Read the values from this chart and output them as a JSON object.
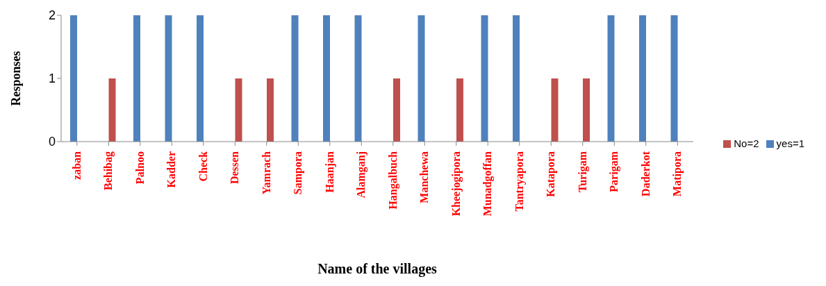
{
  "chart_data": {
    "type": "bar",
    "xlabel": "Name of the villages",
    "ylabel": "Responses",
    "categories": [
      "zaban",
      "Behibag",
      "Palnoo",
      "Kadder",
      "Check",
      "Dessen",
      "Yamrach",
      "Sampora",
      "Haanjan",
      "Alamganj",
      "Hangalbuch",
      "Manchewa",
      "Kheejogipora",
      "Munadgoffan",
      "Tantryapora",
      "Katapora",
      "Turigam",
      "Parigam",
      "Daderkot",
      "Matipora"
    ],
    "series": [
      {
        "name": "yes=1",
        "color": "#4f81bd",
        "values": [
          2,
          null,
          2,
          2,
          2,
          null,
          null,
          2,
          2,
          2,
          null,
          2,
          null,
          2,
          2,
          null,
          null,
          2,
          2,
          2
        ]
      },
      {
        "name": "No=2",
        "color": "#c0504d",
        "values": [
          null,
          1,
          null,
          null,
          null,
          1,
          1,
          null,
          null,
          null,
          1,
          null,
          1,
          null,
          null,
          1,
          1,
          null,
          null,
          null
        ]
      }
    ],
    "ylim": [
      0,
      2
    ],
    "yticks": [
      0,
      1,
      2
    ],
    "grid": false,
    "legend": "right"
  }
}
